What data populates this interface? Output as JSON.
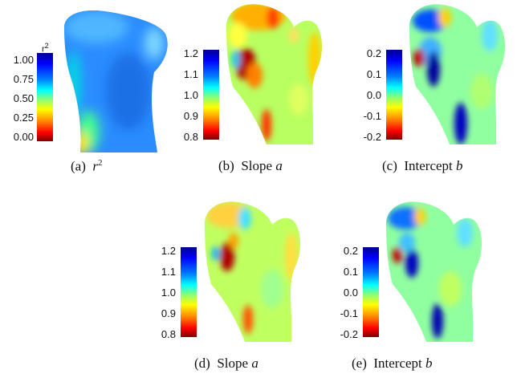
{
  "colors": {
    "jet": [
      "#00008f",
      "#0000ff",
      "#0080ff",
      "#00ffff",
      "#80ff80",
      "#ffff00",
      "#ff8000",
      "#ff0000",
      "#800000"
    ]
  },
  "panels": [
    {
      "id": "a",
      "caption_prefix": "(a)",
      "caption_text": "",
      "caption_math": "r",
      "caption_sup": "2",
      "colorbar_title": "r",
      "colorbar_title_sup": "2",
      "ticks": [
        "1.00",
        "0.75",
        "0.50",
        "0.25",
        "0.00"
      ]
    },
    {
      "id": "b",
      "caption_prefix": "(b)",
      "caption_text": "Slope",
      "caption_math": "a",
      "ticks": [
        "1.2",
        "1.1",
        "1.0",
        "0.9",
        "0.8"
      ]
    },
    {
      "id": "c",
      "caption_prefix": "(c)",
      "caption_text": "Intercept",
      "caption_math": "b",
      "ticks": [
        "0.2",
        "0.1",
        "0.0",
        "-0.1",
        "-0.2"
      ]
    },
    {
      "id": "d",
      "caption_prefix": "(d)",
      "caption_text": "Slope",
      "caption_math": "a",
      "ticks": [
        "1.2",
        "1.1",
        "1.0",
        "0.9",
        "0.8"
      ]
    },
    {
      "id": "e",
      "caption_prefix": "(e)",
      "caption_text": "Intercept",
      "caption_math": "b",
      "ticks": [
        "0.2",
        "0.1",
        "0.0",
        "-0.1",
        "-0.2"
      ]
    }
  ]
}
